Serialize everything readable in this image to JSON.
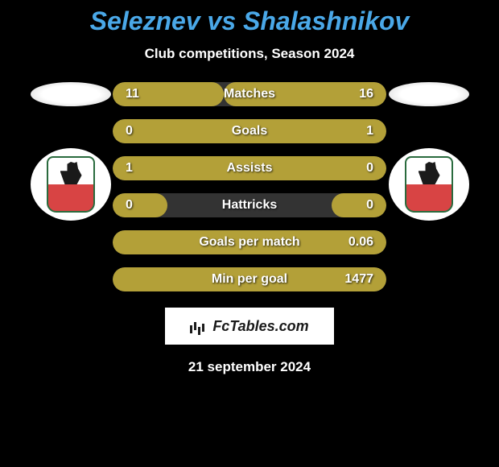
{
  "title": "Seleznev vs Shalashnikov",
  "subtitle": "Club competitions, Season 2024",
  "footer_brand": "FcTables.com",
  "footer_date": "21 september 2024",
  "colors": {
    "background": "#000000",
    "title": "#4aa8e8",
    "text": "#ffffff",
    "bar_fill": "#b3a038",
    "bar_empty": "#333333"
  },
  "stats": [
    {
      "label": "Matches",
      "left_value": "11",
      "right_value": "16",
      "left_width_pct": 40.7,
      "right_width_pct": 59.3
    },
    {
      "label": "Goals",
      "left_value": "0",
      "right_value": "1",
      "left_width_pct": 20,
      "right_width_pct": 100
    },
    {
      "label": "Assists",
      "left_value": "1",
      "right_value": "0",
      "left_width_pct": 100,
      "right_width_pct": 20
    },
    {
      "label": "Hattricks",
      "left_value": "0",
      "right_value": "0",
      "left_width_pct": 20,
      "right_width_pct": 20
    },
    {
      "label": "Goals per match",
      "left_value": "",
      "right_value": "0.06",
      "left_width_pct": 20,
      "right_width_pct": 100
    },
    {
      "label": "Min per goal",
      "left_value": "",
      "right_value": "1477",
      "left_width_pct": 20,
      "right_width_pct": 100
    }
  ]
}
